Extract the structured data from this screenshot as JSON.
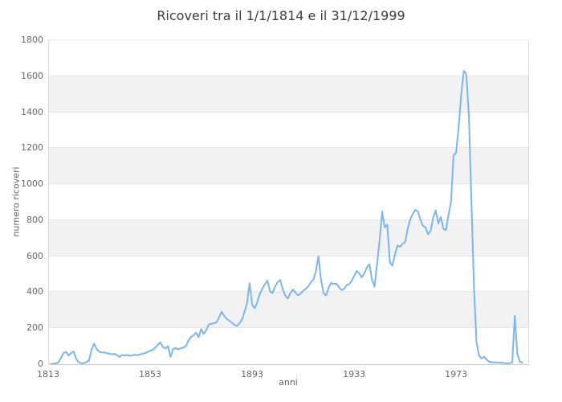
{
  "title": "Ricoveri tra il 1/1/1814 e il 31/12/1999",
  "colors": {
    "line": "#7cb5ec",
    "band_gray": "#f2f2f2",
    "band_white": "#ffffff",
    "gridline": "#e6e6e6",
    "axis_line": "#cccccc",
    "plot_edge": "#d9d9d9",
    "tick_label": "#666666",
    "title_text": "#3c3c3c"
  },
  "chart_data": {
    "type": "line",
    "title": "Ricoveri tra il 1/1/1814 e il 31/12/1999",
    "xlabel": "anni",
    "ylabel": "numero ricoveri",
    "xlim": [
      1813,
      2001.3
    ],
    "ylim": [
      0,
      1800
    ],
    "x_ticks": [
      1813,
      1853,
      1893,
      1933,
      1973
    ],
    "y_ticks": [
      0,
      200,
      400,
      600,
      800,
      1000,
      1200,
      1400,
      1600,
      1800
    ],
    "grid": "horizontal gridlines every 200 with alternating white/gray bands",
    "legend": "none",
    "markers": "none",
    "series": [
      {
        "name": "numero ricoveri per anno",
        "color": "#7cb5ec",
        "start_year": 1814,
        "end_year": 1999,
        "values": [
          2,
          3,
          4,
          10,
          35,
          62,
          68,
          48,
          62,
          70,
          30,
          10,
          6,
          6,
          12,
          20,
          80,
          115,
          85,
          70,
          65,
          65,
          62,
          58,
          56,
          57,
          50,
          40,
          52,
          48,
          52,
          47,
          50,
          53,
          50,
          55,
          58,
          62,
          68,
          75,
          80,
          92,
          108,
          122,
          95,
          88,
          100,
          40,
          85,
          90,
          82,
          88,
          92,
          100,
          132,
          150,
          160,
          175,
          150,
          195,
          168,
          190,
          220,
          225,
          228,
          232,
          258,
          292,
          268,
          252,
          242,
          232,
          220,
          212,
          228,
          248,
          290,
          340,
          450,
          330,
          310,
          345,
          390,
          420,
          445,
          465,
          405,
          395,
          432,
          455,
          468,
          415,
          382,
          365,
          395,
          415,
          398,
          382,
          392,
          408,
          418,
          432,
          455,
          470,
          520,
          600,
          470,
          395,
          382,
          425,
          452,
          445,
          448,
          430,
          412,
          418,
          438,
          445,
          462,
          490,
          518,
          505,
          482,
          505,
          538,
          556,
          470,
          430,
          560,
          690,
          848,
          760,
          775,
          565,
          548,
          610,
          660,
          652,
          668,
          680,
          752,
          805,
          835,
          858,
          848,
          802,
          768,
          760,
          722,
          742,
          812,
          855,
          782,
          818,
          752,
          745,
          828,
          905,
          1160,
          1175,
          1320,
          1500,
          1630,
          1612,
          1380,
          900,
          420,
          120,
          48,
          32,
          42,
          25,
          14,
          11,
          9,
          10,
          8,
          9,
          6,
          5,
          6,
          10,
          270,
          60,
          14,
          9
        ]
      }
    ]
  }
}
